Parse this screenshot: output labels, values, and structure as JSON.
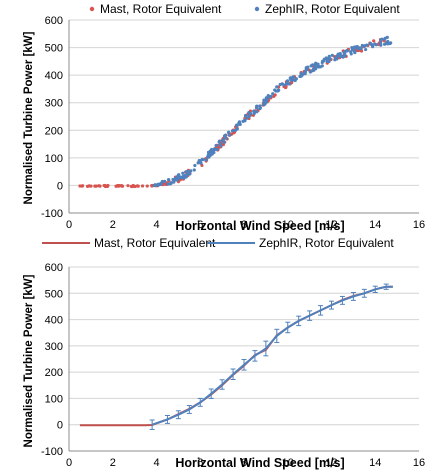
{
  "chart_data": [
    {
      "type": "scatter",
      "xlabel": "Horizontal Wind Speed [m/s]",
      "ylabel": "Normalised Turbine Power [kW]",
      "xlim": [
        0,
        16
      ],
      "ylim": [
        -100,
        600
      ],
      "xticks": [
        0,
        2,
        4,
        6,
        8,
        10,
        12,
        14,
        16
      ],
      "yticks": [
        -100,
        0,
        100,
        200,
        300,
        400,
        500,
        600
      ],
      "grid": "horizontal",
      "legend_position": "top",
      "series": [
        {
          "name": "Mast, Rotor Equivalent",
          "color": "#d9534f",
          "marker": "dot",
          "curve_x": [
            0.5,
            1,
            2,
            3,
            3.5,
            4,
            4.5,
            5,
            5.5,
            6,
            6.5,
            7,
            7.5,
            8,
            8.5,
            9,
            9.5,
            10,
            10.5,
            11,
            11.5,
            12,
            12.5,
            13,
            13.5,
            14,
            14.5,
            14.8
          ],
          "curve_y": [
            -2,
            -2,
            -2,
            -2,
            -2,
            -1,
            8,
            25,
            45,
            78,
            115,
            155,
            198,
            240,
            270,
            300,
            345,
            370,
            400,
            420,
            440,
            460,
            475,
            488,
            500,
            515,
            525,
            527
          ]
        },
        {
          "name": "ZephIR, Rotor Equivalent",
          "color": "#4f81bd",
          "marker": "dot",
          "curve_x": [
            3.9,
            4.5,
            5,
            5.5,
            6,
            6.5,
            7,
            7.5,
            8,
            8.5,
            9,
            9.5,
            10,
            10.5,
            11,
            11.5,
            12,
            12.5,
            13,
            13.5,
            14,
            14.5,
            14.8
          ],
          "curve_y": [
            0,
            10,
            28,
            48,
            82,
            118,
            158,
            200,
            242,
            272,
            305,
            348,
            372,
            402,
            422,
            442,
            462,
            476,
            490,
            502,
            516,
            525,
            527
          ]
        }
      ]
    },
    {
      "type": "line",
      "xlabel": "Horizontal Wind Speed [m/s]",
      "ylabel": "Normalised Turbine Power [kW]",
      "xlim": [
        0,
        16
      ],
      "ylim": [
        -100,
        600
      ],
      "xticks": [
        0,
        2,
        4,
        6,
        8,
        10,
        12,
        14,
        16
      ],
      "yticks": [
        -100,
        0,
        100,
        200,
        300,
        400,
        500,
        600
      ],
      "grid": "horizontal",
      "legend_position": "top",
      "series": [
        {
          "name": "Mast, Rotor Equivalent",
          "color": "#c0504d",
          "x": [
            0.5,
            1,
            1.5,
            2,
            2.5,
            3,
            3.5,
            3.8,
            4.5,
            5,
            5.5,
            6,
            6.5,
            7,
            7.5,
            8,
            8.5,
            9,
            9.5,
            10,
            10.5,
            11,
            11.5,
            12,
            12.5,
            13,
            13.5,
            14,
            14.5,
            14.8
          ],
          "y": [
            -2,
            -2,
            -2,
            -2,
            -2,
            -2,
            -2,
            -1,
            20,
            40,
            60,
            85,
            115,
            150,
            190,
            225,
            265,
            285,
            340,
            370,
            395,
            415,
            435,
            455,
            475,
            490,
            500,
            515,
            525,
            525
          ]
        },
        {
          "name": "ZephIR, Rotor Equivalent",
          "color": "#4f81bd",
          "x": [
            3.8,
            4.5,
            5,
            5.5,
            6,
            6.5,
            7,
            7.5,
            8,
            8.5,
            9,
            9.5,
            10,
            10.5,
            11,
            11.5,
            12,
            12.5,
            13,
            13.5,
            14,
            14.5,
            14.8
          ],
          "y": [
            0,
            20,
            38,
            58,
            85,
            118,
            153,
            192,
            228,
            262,
            290,
            338,
            370,
            395,
            415,
            435,
            455,
            473,
            488,
            500,
            515,
            525,
            525
          ],
          "error_bars": [
            18,
            15,
            15,
            15,
            15,
            18,
            18,
            20,
            20,
            20,
            28,
            25,
            20,
            18,
            18,
            18,
            15,
            15,
            15,
            15,
            12,
            10,
            0
          ]
        }
      ]
    }
  ]
}
